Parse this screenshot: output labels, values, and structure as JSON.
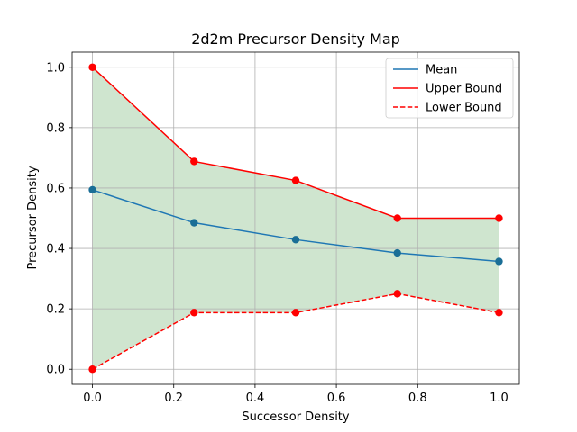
{
  "chart_data": {
    "type": "line",
    "title": "2d2m Precursor Density Map",
    "xlabel": "Successor Density",
    "ylabel": "Precursor Density",
    "xlim": [
      -0.05,
      1.05
    ],
    "ylim": [
      -0.05,
      1.05
    ],
    "xticks": [
      0.0,
      0.2,
      0.4,
      0.6,
      0.8,
      1.0
    ],
    "yticks": [
      0.0,
      0.2,
      0.4,
      0.6,
      0.8,
      1.0
    ],
    "xtick_labels": [
      "0.0",
      "0.2",
      "0.4",
      "0.6",
      "0.8",
      "1.0"
    ],
    "ytick_labels": [
      "0.0",
      "0.2",
      "0.4",
      "0.6",
      "0.8",
      "1.0"
    ],
    "grid": true,
    "legend_position": "top-right",
    "x": [
      0.0,
      0.25,
      0.5,
      0.75,
      1.0
    ],
    "series": [
      {
        "name": "Mean",
        "values": [
          0.594,
          0.485,
          0.429,
          0.385,
          0.357
        ],
        "color": "#1f77b4",
        "style": "solid",
        "marker_color": "#1a6e96"
      },
      {
        "name": "Upper Bound",
        "values": [
          1.0,
          0.688,
          0.625,
          0.5,
          0.5
        ],
        "color": "#ff0000",
        "style": "solid",
        "marker_color": "#ff0000"
      },
      {
        "name": "Lower Bound",
        "values": [
          0.0,
          0.1875,
          0.1875,
          0.25,
          0.1875
        ],
        "color": "#ff0000",
        "style": "dashed",
        "marker_color": "#ff0000"
      }
    ],
    "fill_between": {
      "upper": "Upper Bound",
      "lower": "Lower Bound",
      "color": "#cfe5cf"
    }
  }
}
